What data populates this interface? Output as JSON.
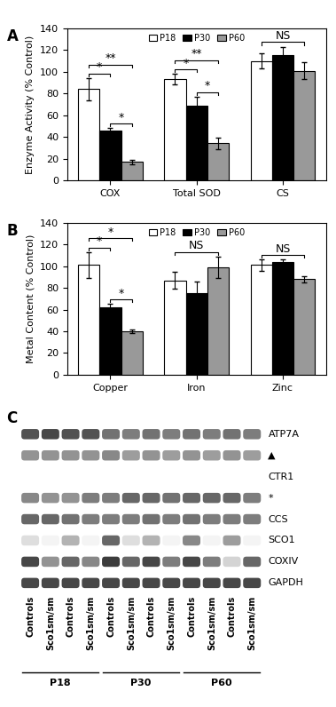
{
  "chart_data": [
    {
      "type": "bar",
      "panel": "A",
      "ylabel": "Enzyme Activity (% Control)",
      "categories": [
        "COX",
        "Total SOD",
        "CS"
      ],
      "series": [
        {
          "name": "P18",
          "color": "#ffffff",
          "values": [
            84,
            93,
            110
          ],
          "errors": [
            10,
            5,
            7
          ]
        },
        {
          "name": "P30",
          "color": "#000000",
          "values": [
            46,
            69,
            115
          ],
          "errors": [
            2,
            8,
            8
          ]
        },
        {
          "name": "P60",
          "color": "#999999",
          "values": [
            17,
            34,
            101
          ],
          "errors": [
            2,
            5,
            8
          ]
        }
      ],
      "ylim": [
        0,
        140
      ],
      "yticks": [
        0,
        20,
        40,
        60,
        80,
        100,
        120,
        140
      ],
      "legend": "upper center",
      "annotations": [
        {
          "category": "COX",
          "from": "P18",
          "to": "P30",
          "text": "*"
        },
        {
          "category": "COX",
          "from": "P30",
          "to": "P60",
          "text": "*"
        },
        {
          "category": "COX",
          "from": "P18",
          "to": "P60",
          "text": "**"
        },
        {
          "category": "Total SOD",
          "from": "P18",
          "to": "P30",
          "text": "*"
        },
        {
          "category": "Total SOD",
          "from": "P30",
          "to": "P60",
          "text": "*"
        },
        {
          "category": "Total SOD",
          "from": "P18",
          "to": "P60",
          "text": "**"
        },
        {
          "category": "CS",
          "from": "P18",
          "to": "P60",
          "text": "NS"
        }
      ]
    },
    {
      "type": "bar",
      "panel": "B",
      "ylabel": "Metal Content (% Control)",
      "categories": [
        "Copper",
        "Iron",
        "Zinc"
      ],
      "series": [
        {
          "name": "P18",
          "color": "#ffffff",
          "values": [
            101,
            87,
            101
          ],
          "errors": [
            12,
            8,
            5
          ]
        },
        {
          "name": "P30",
          "color": "#000000",
          "values": [
            62,
            75,
            104
          ],
          "errors": [
            3,
            11,
            2
          ]
        },
        {
          "name": "P60",
          "color": "#999999",
          "values": [
            40,
            99,
            88
          ],
          "errors": [
            2,
            10,
            3
          ]
        }
      ],
      "ylim": [
        0,
        140
      ],
      "yticks": [
        0,
        20,
        40,
        60,
        80,
        100,
        120,
        140
      ],
      "legend": "upper center",
      "annotations": [
        {
          "category": "Copper",
          "from": "P18",
          "to": "P30",
          "text": "*"
        },
        {
          "category": "Copper",
          "from": "P30",
          "to": "P60",
          "text": "*"
        },
        {
          "category": "Copper",
          "from": "P18",
          "to": "P60",
          "text": "*"
        },
        {
          "category": "Iron",
          "from": "P18",
          "to": "P60",
          "text": "NS"
        },
        {
          "category": "Zinc",
          "from": "P18",
          "to": "P60",
          "text": "NS"
        }
      ]
    }
  ],
  "blot": {
    "panel": "C",
    "rows": [
      {
        "label": "ATP7A",
        "intensity": [
          0.8,
          0.85,
          0.8,
          0.8,
          0.65,
          0.6,
          0.65,
          0.6,
          0.65,
          0.6,
          0.65,
          0.6
        ]
      },
      {
        "label": "▲",
        "intensity": [
          0.5,
          0.5,
          0.5,
          0.5,
          0.55,
          0.45,
          0.5,
          0.45,
          0.5,
          0.45,
          0.5,
          0.45
        ]
      },
      {
        "label": "CTR1"
      },
      {
        "label": "*",
        "intensity": [
          0.55,
          0.5,
          0.5,
          0.6,
          0.6,
          0.7,
          0.7,
          0.65,
          0.7,
          0.7,
          0.7,
          0.6
        ]
      },
      {
        "label": "CCS",
        "intensity": [
          0.7,
          0.7,
          0.65,
          0.6,
          0.6,
          0.6,
          0.65,
          0.6,
          0.65,
          0.6,
          0.6,
          0.6
        ]
      },
      {
        "label": "SCO1",
        "intensity": [
          0.15,
          0.05,
          0.35,
          0.05,
          0.7,
          0.15,
          0.35,
          0.05,
          0.55,
          0.05,
          0.45,
          0.05
        ]
      },
      {
        "label": "COXIV",
        "intensity": [
          0.85,
          0.5,
          0.7,
          0.55,
          0.9,
          0.7,
          0.85,
          0.6,
          0.85,
          0.6,
          0.2,
          0.7
        ]
      },
      {
        "label": "GAPDH",
        "intensity": [
          0.85,
          0.85,
          0.85,
          0.85,
          0.85,
          0.85,
          0.85,
          0.85,
          0.85,
          0.85,
          0.85,
          0.85
        ]
      }
    ],
    "lanes": [
      "Controls",
      "Sco1sm/sm",
      "Controls",
      "Sco1sm/sm",
      "Controls",
      "Sco1sm/sm",
      "Controls",
      "Sco1sm/sm",
      "Controls",
      "Sco1sm/sm",
      "Controls",
      "Sco1sm/sm"
    ],
    "groups": [
      {
        "label": "P18",
        "lanes": 4
      },
      {
        "label": "P30",
        "lanes": 4
      },
      {
        "label": "P60",
        "lanes": 4
      }
    ]
  }
}
